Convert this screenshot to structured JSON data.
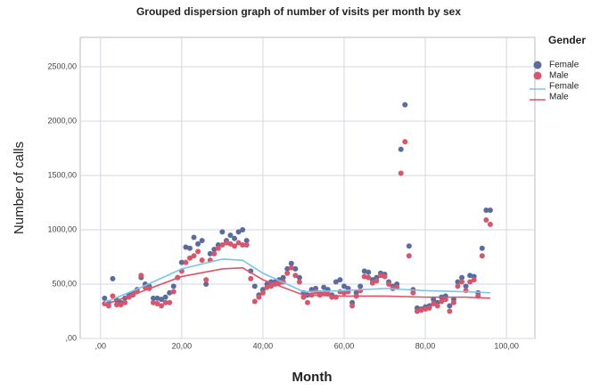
{
  "chart_data": {
    "type": "scatter",
    "title": "Grouped dispersion graph of number of visits per month by sex",
    "x_label": "Month",
    "y_label": "Number of calls",
    "legend_title": "Gender",
    "xlim": [
      -5,
      107
    ],
    "ylim": [
      0,
      2770
    ],
    "grid": true,
    "xticks": [
      {
        "value": 0,
        "label": ",00"
      },
      {
        "value": 20,
        "label": "20,00"
      },
      {
        "value": 40,
        "label": "40,00"
      },
      {
        "value": 60,
        "label": "60,00"
      },
      {
        "value": 80,
        "label": "80,00"
      },
      {
        "value": 100,
        "label": "100,00"
      }
    ],
    "yticks": [
      {
        "value": 0,
        "label": ",00"
      },
      {
        "value": 500,
        "label": "500,00"
      },
      {
        "value": 1000,
        "label": "1000,00"
      },
      {
        "value": 1500,
        "label": "1500,00"
      },
      {
        "value": 2000,
        "label": "2000,00"
      },
      {
        "value": 2500,
        "label": "2500,00"
      }
    ],
    "series": [
      {
        "name": "Female",
        "mode": "markers",
        "color": "#5a6c9e",
        "x": [
          1,
          2,
          3,
          4,
          5,
          6,
          7,
          8,
          9,
          10,
          11,
          12,
          13,
          14,
          15,
          16,
          17,
          18,
          19,
          20,
          21,
          22,
          23,
          24,
          25,
          26,
          27,
          28,
          29,
          30,
          31,
          32,
          33,
          34,
          35,
          36,
          37,
          38,
          39,
          40,
          41,
          42,
          43,
          44,
          45,
          46,
          47,
          48,
          49,
          50,
          51,
          52,
          53,
          54,
          55,
          56,
          57,
          58,
          59,
          60,
          61,
          62,
          63,
          64,
          65,
          66,
          67,
          68,
          69,
          70,
          71,
          72,
          73,
          74,
          75,
          76,
          77,
          78,
          79,
          80,
          81,
          82,
          83,
          84,
          85,
          86,
          87,
          88,
          89,
          90,
          91,
          92,
          93,
          94,
          95,
          96
        ],
        "values": [
          370,
          330,
          550,
          350,
          330,
          370,
          400,
          420,
          450,
          560,
          500,
          480,
          370,
          370,
          360,
          380,
          420,
          480,
          560,
          700,
          840,
          830,
          930,
          870,
          900,
          500,
          780,
          820,
          860,
          980,
          900,
          950,
          920,
          980,
          1000,
          900,
          620,
          480,
          400,
          450,
          500,
          520,
          520,
          540,
          560,
          640,
          690,
          640,
          560,
          420,
          400,
          450,
          460,
          420,
          470,
          450,
          400,
          520,
          540,
          480,
          460,
          330,
          420,
          480,
          620,
          610,
          540,
          560,
          600,
          590,
          520,
          480,
          500,
          1740,
          2150,
          850,
          450,
          280,
          270,
          290,
          300,
          360,
          330,
          380,
          390,
          300,
          360,
          520,
          560,
          480,
          580,
          570,
          420,
          830,
          1180,
          1180
        ]
      },
      {
        "name": "Male",
        "mode": "markers",
        "color": "#d8566c",
        "x": [
          1,
          2,
          3,
          4,
          5,
          6,
          7,
          8,
          9,
          10,
          11,
          12,
          13,
          14,
          15,
          16,
          17,
          18,
          19,
          20,
          21,
          22,
          23,
          24,
          25,
          26,
          27,
          28,
          29,
          30,
          31,
          32,
          33,
          34,
          35,
          36,
          37,
          38,
          39,
          40,
          41,
          42,
          43,
          44,
          45,
          46,
          47,
          48,
          49,
          50,
          51,
          52,
          53,
          54,
          55,
          56,
          57,
          58,
          59,
          60,
          61,
          62,
          63,
          64,
          65,
          66,
          67,
          68,
          69,
          70,
          71,
          72,
          73,
          74,
          75,
          76,
          77,
          78,
          79,
          80,
          81,
          82,
          83,
          84,
          85,
          86,
          87,
          88,
          89,
          90,
          91,
          92,
          93,
          94,
          95,
          96
        ],
        "values": [
          320,
          300,
          390,
          310,
          310,
          330,
          380,
          400,
          430,
          580,
          470,
          460,
          330,
          320,
          300,
          330,
          330,
          430,
          560,
          620,
          700,
          740,
          760,
          800,
          720,
          540,
          720,
          780,
          830,
          860,
          880,
          870,
          850,
          880,
          860,
          860,
          550,
          340,
          380,
          420,
          470,
          480,
          500,
          510,
          520,
          600,
          650,
          580,
          520,
          380,
          330,
          400,
          430,
          400,
          420,
          410,
          380,
          380,
          430,
          420,
          430,
          300,
          390,
          440,
          570,
          560,
          510,
          530,
          580,
          570,
          500,
          460,
          470,
          1520,
          1810,
          760,
          420,
          250,
          260,
          270,
          280,
          320,
          300,
          340,
          360,
          250,
          330,
          480,
          520,
          440,
          520,
          540,
          390,
          760,
          1090,
          1050
        ]
      },
      {
        "name": "Female",
        "mode": "line",
        "color": "#7cc4e6",
        "x": [
          1,
          10,
          20,
          30,
          35,
          40,
          50,
          60,
          70,
          80,
          90,
          96
        ],
        "values": [
          330,
          470,
          640,
          730,
          720,
          600,
          430,
          440,
          460,
          440,
          430,
          420
        ]
      },
      {
        "name": "Male",
        "mode": "line",
        "color": "#e0506a",
        "x": [
          1,
          10,
          20,
          30,
          35,
          40,
          50,
          60,
          70,
          80,
          90,
          96
        ],
        "values": [
          310,
          430,
          570,
          640,
          650,
          540,
          400,
          390,
          390,
          380,
          380,
          370
        ]
      }
    ]
  }
}
